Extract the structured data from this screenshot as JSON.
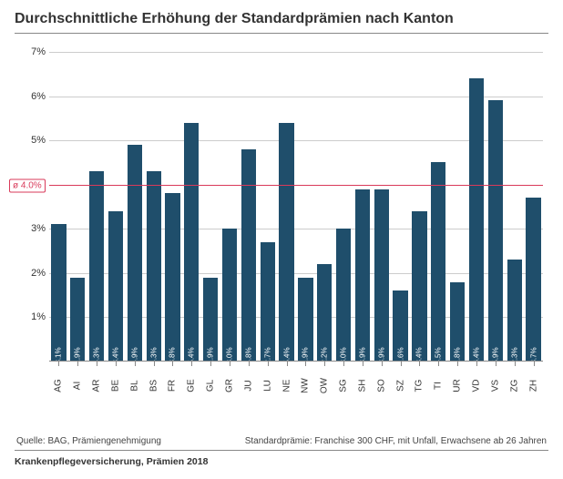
{
  "title": "Durchschnittliche Erhöhung der Standardprämien nach Kanton",
  "chart": {
    "type": "bar",
    "bar_color": "#1f4e6b",
    "grid_color": "#cccccc",
    "ref_color": "#d93a5a",
    "ymax": 7,
    "ystep": 1,
    "reference_value": 4.0,
    "reference_label": "ø 4.0%",
    "categories": [
      "AG",
      "AI",
      "AR",
      "BE",
      "BL",
      "BS",
      "FR",
      "GE",
      "GL",
      "GR",
      "JU",
      "LU",
      "NE",
      "NW",
      "OW",
      "SG",
      "SH",
      "SO",
      "SZ",
      "TG",
      "TI",
      "UR",
      "VD",
      "VS",
      "ZG",
      "ZH"
    ],
    "values": [
      3.1,
      1.9,
      4.3,
      3.4,
      4.9,
      4.3,
      3.8,
      5.4,
      1.9,
      3.0,
      4.8,
      2.7,
      5.4,
      1.9,
      2.2,
      3.0,
      3.9,
      3.9,
      1.6,
      3.4,
      4.5,
      1.8,
      6.4,
      5.9,
      2.3,
      3.7
    ],
    "ticks_label_suffix": "%",
    "bar_label_suffix": "%"
  },
  "footer_left": "Quelle: BAG, Prämiengenehmigung",
  "footer_right": "Standardprämie: Franchise 300 CHF, mit Unfall, Erwachsene ab 26 Jahren",
  "source": "Krankenpflegeversicherung, Prämien 2018"
}
